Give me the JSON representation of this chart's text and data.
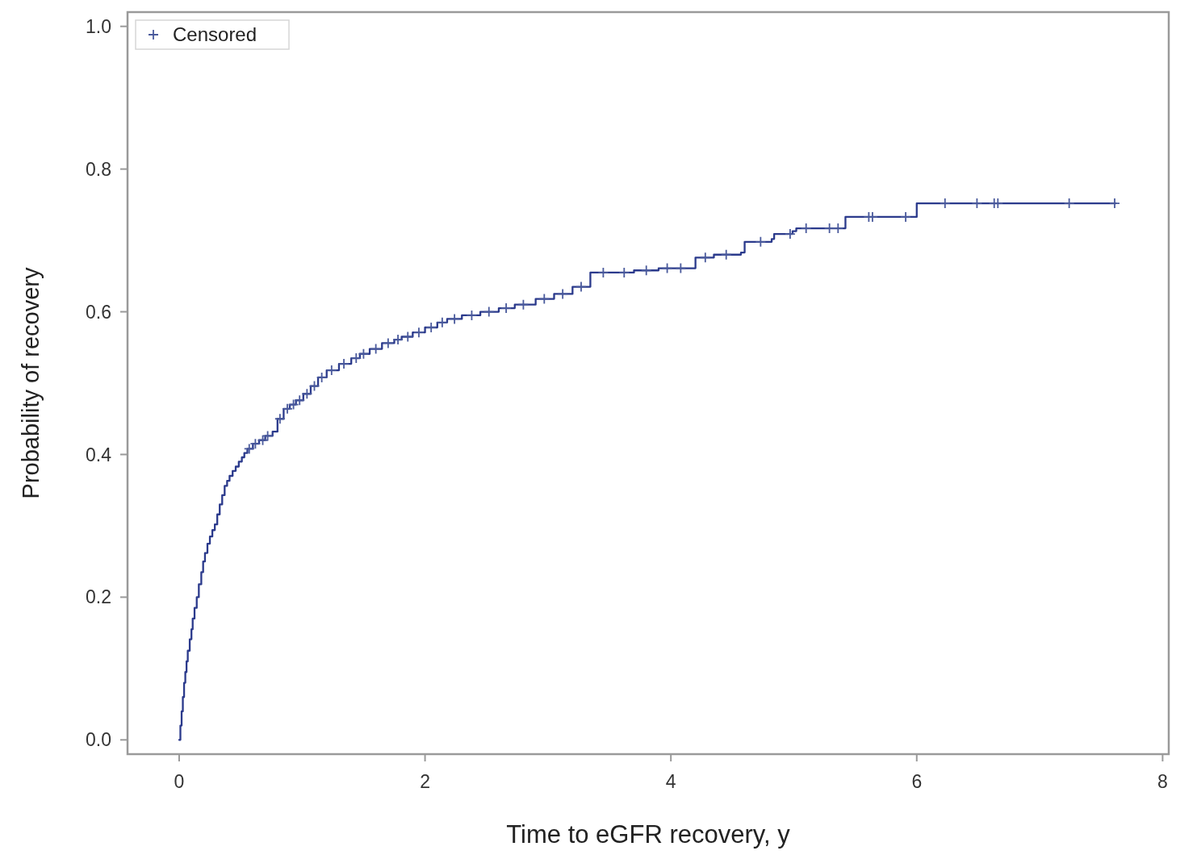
{
  "chart_data": {
    "type": "step",
    "xlabel": "Time to eGFR recovery, y",
    "ylabel": "Probability of recovery",
    "xlim": [
      -0.42,
      8.05
    ],
    "ylim": [
      -0.02,
      1.02
    ],
    "xticks": [
      0,
      2,
      4,
      6,
      8
    ],
    "yticks": [
      {
        "value": 0,
        "label": "0.0"
      },
      0.2,
      0.4,
      0.6,
      0.8,
      {
        "value": 1,
        "label": "1.0"
      }
    ],
    "legend": "top left",
    "series": [
      {
        "color": "#2b3a8c",
        "x": [
          0,
          0.01,
          0.02,
          0.03,
          0.04,
          0.05,
          0.06,
          0.07,
          0.086,
          0.1,
          0.11,
          0.125,
          0.143,
          0.16,
          0.18,
          0.195,
          0.21,
          0.23,
          0.25,
          0.27,
          0.29,
          0.31,
          0.33,
          0.35,
          0.37,
          0.39,
          0.41,
          0.435,
          0.46,
          0.485,
          0.51,
          0.53,
          0.555,
          0.6,
          0.65,
          0.7,
          0.76,
          0.8,
          0.85,
          0.9,
          0.95,
          1.01,
          1.07,
          1.13,
          1.2,
          1.3,
          1.4,
          1.47,
          1.55,
          1.65,
          1.75,
          1.81,
          1.9,
          2.0,
          2.1,
          2.18,
          2.3,
          2.45,
          2.6,
          2.73,
          2.9,
          3.05,
          3.2,
          3.345,
          3.54,
          3.7,
          3.9,
          4.2,
          4.35,
          4.57,
          4.6,
          4.82,
          4.84,
          4.99,
          5.02,
          5.42,
          6.0,
          7.62
        ],
        "values": [
          0,
          0.02,
          0.04,
          0.06,
          0.08,
          0.095,
          0.11,
          0.125,
          0.141,
          0.155,
          0.17,
          0.185,
          0.2,
          0.218,
          0.235,
          0.25,
          0.262,
          0.275,
          0.285,
          0.294,
          0.302,
          0.316,
          0.33,
          0.343,
          0.356,
          0.363,
          0.37,
          0.377,
          0.383,
          0.39,
          0.396,
          0.402,
          0.408,
          0.415,
          0.42,
          0.426,
          0.432,
          0.45,
          0.464,
          0.47,
          0.476,
          0.485,
          0.496,
          0.508,
          0.518,
          0.527,
          0.535,
          0.541,
          0.548,
          0.556,
          0.561,
          0.565,
          0.571,
          0.578,
          0.585,
          0.59,
          0.595,
          0.6,
          0.605,
          0.61,
          0.618,
          0.625,
          0.635,
          0.655,
          0.655,
          0.658,
          0.661,
          0.676,
          0.68,
          0.683,
          0.698,
          0.702,
          0.709,
          0.713,
          0.717,
          0.733,
          0.752,
          0.752
        ]
      },
      {
        "type": "scatter",
        "name": "Censored",
        "marker": "cross",
        "color": "#4a5a9c",
        "x": [
          0.57,
          0.62,
          0.68,
          0.72,
          0.82,
          0.88,
          0.93,
          0.98,
          1.04,
          1.1,
          1.16,
          1.24,
          1.34,
          1.44,
          1.5,
          1.6,
          1.7,
          1.78,
          1.86,
          1.95,
          2.05,
          2.14,
          2.24,
          2.38,
          2.52,
          2.66,
          2.8,
          2.97,
          3.12,
          3.27,
          3.45,
          3.62,
          3.8,
          3.97,
          4.08,
          4.28,
          4.45,
          4.73,
          4.97,
          5.1,
          5.29,
          5.36,
          5.61,
          5.64,
          5.91,
          6.23,
          6.49,
          6.63,
          6.66,
          7.24,
          7.61
        ],
        "values": [
          0.408,
          0.415,
          0.42,
          0.426,
          0.45,
          0.464,
          0.47,
          0.476,
          0.485,
          0.496,
          0.508,
          0.518,
          0.527,
          0.535,
          0.541,
          0.548,
          0.556,
          0.561,
          0.565,
          0.571,
          0.578,
          0.585,
          0.59,
          0.595,
          0.6,
          0.605,
          0.61,
          0.618,
          0.625,
          0.635,
          0.655,
          0.655,
          0.658,
          0.661,
          0.661,
          0.676,
          0.68,
          0.698,
          0.709,
          0.717,
          0.717,
          0.717,
          0.733,
          0.733,
          0.733,
          0.752,
          0.752,
          0.752,
          0.752,
          0.752,
          0.752
        ]
      }
    ]
  }
}
